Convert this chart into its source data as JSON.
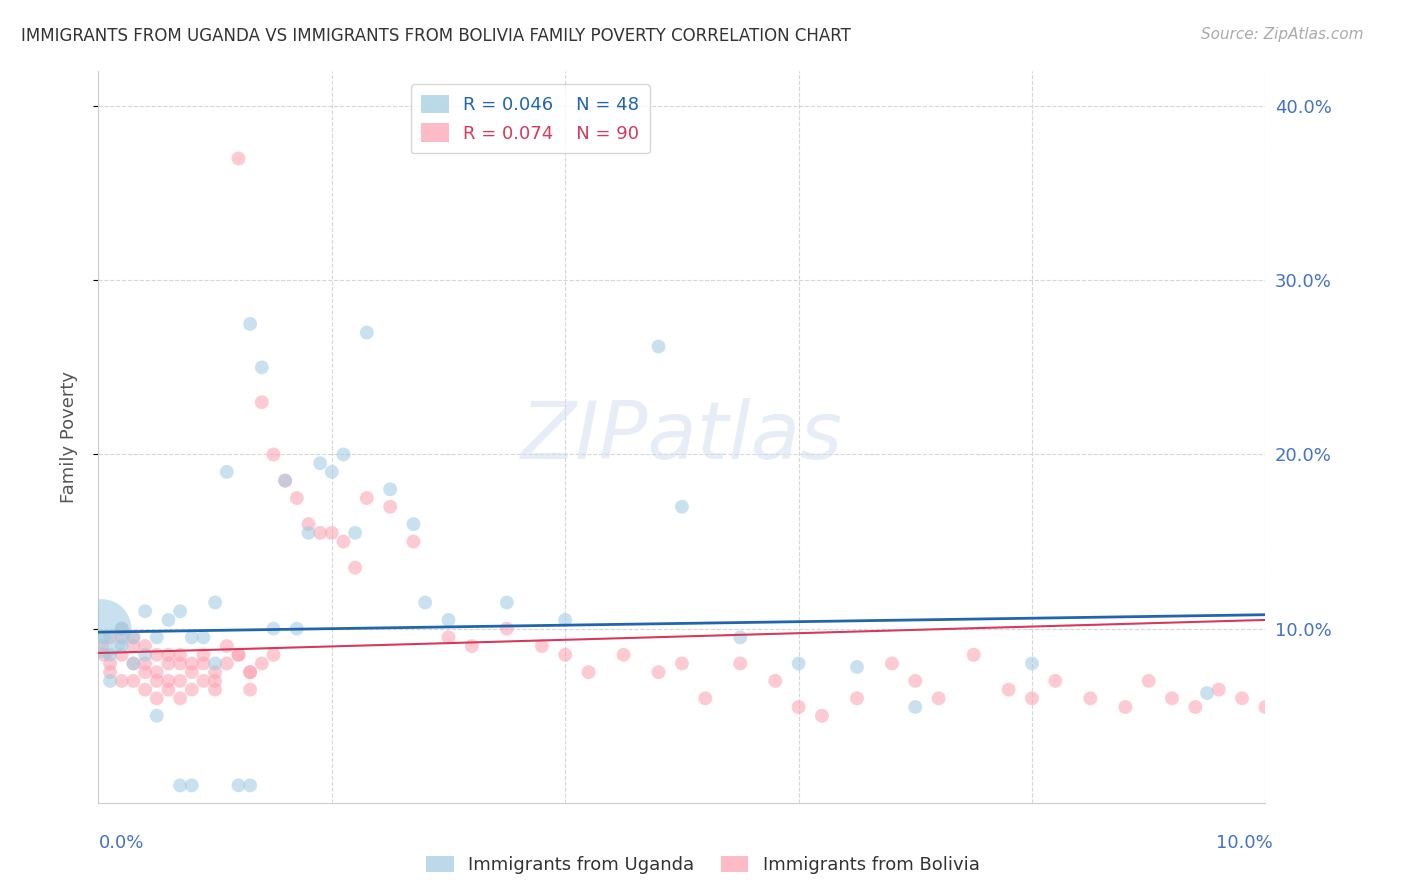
{
  "title": "IMMIGRANTS FROM UGANDA VS IMMIGRANTS FROM BOLIVIA FAMILY POVERTY CORRELATION CHART",
  "source": "Source: ZipAtlas.com",
  "ylabel": "Family Poverty",
  "xlim": [
    0.0,
    0.1
  ],
  "ylim": [
    0.0,
    0.42
  ],
  "legend_r1": "R = 0.046",
  "legend_n1": "N = 48",
  "legend_r2": "R = 0.074",
  "legend_n2": "N = 90",
  "color_uganda": "#9ecae1",
  "color_bolivia": "#fc9fb0",
  "trendline_color_uganda": "#2166ac",
  "trendline_color_bolivia": "#d6395c",
  "watermark": "ZIPatlas",
  "uganda_x": [
    0.0003,
    0.0005,
    0.001,
    0.001,
    0.002,
    0.002,
    0.003,
    0.003,
    0.004,
    0.004,
    0.005,
    0.005,
    0.006,
    0.007,
    0.007,
    0.008,
    0.008,
    0.009,
    0.01,
    0.01,
    0.011,
    0.012,
    0.013,
    0.013,
    0.014,
    0.015,
    0.016,
    0.017,
    0.018,
    0.019,
    0.02,
    0.021,
    0.022,
    0.023,
    0.025,
    0.027,
    0.028,
    0.03,
    0.035,
    0.04,
    0.048,
    0.05,
    0.055,
    0.06,
    0.065,
    0.07,
    0.08,
    0.095
  ],
  "uganda_y": [
    0.1,
    0.095,
    0.085,
    0.07,
    0.1,
    0.09,
    0.095,
    0.08,
    0.11,
    0.085,
    0.05,
    0.095,
    0.105,
    0.01,
    0.11,
    0.095,
    0.01,
    0.095,
    0.115,
    0.08,
    0.19,
    0.01,
    0.275,
    0.01,
    0.25,
    0.1,
    0.185,
    0.1,
    0.155,
    0.195,
    0.19,
    0.2,
    0.155,
    0.27,
    0.18,
    0.16,
    0.115,
    0.105,
    0.115,
    0.105,
    0.262,
    0.17,
    0.095,
    0.08,
    0.078,
    0.055,
    0.08,
    0.063
  ],
  "uganda_size": [
    1800,
    100,
    100,
    100,
    100,
    100,
    100,
    100,
    100,
    100,
    100,
    100,
    100,
    100,
    100,
    100,
    100,
    100,
    100,
    100,
    100,
    100,
    100,
    100,
    100,
    100,
    100,
    100,
    100,
    100,
    100,
    100,
    100,
    100,
    100,
    100,
    100,
    100,
    100,
    100,
    100,
    100,
    100,
    100,
    100,
    100,
    100,
    100
  ],
  "bolivia_x": [
    0.0003,
    0.0005,
    0.001,
    0.001,
    0.001,
    0.002,
    0.002,
    0.002,
    0.003,
    0.003,
    0.003,
    0.004,
    0.004,
    0.004,
    0.005,
    0.005,
    0.005,
    0.006,
    0.006,
    0.006,
    0.007,
    0.007,
    0.007,
    0.008,
    0.008,
    0.009,
    0.009,
    0.01,
    0.01,
    0.011,
    0.011,
    0.012,
    0.012,
    0.013,
    0.013,
    0.014,
    0.014,
    0.015,
    0.015,
    0.016,
    0.017,
    0.018,
    0.019,
    0.02,
    0.021,
    0.022,
    0.023,
    0.025,
    0.027,
    0.03,
    0.032,
    0.035,
    0.038,
    0.04,
    0.042,
    0.045,
    0.048,
    0.05,
    0.052,
    0.055,
    0.058,
    0.06,
    0.062,
    0.065,
    0.068,
    0.07,
    0.072,
    0.075,
    0.078,
    0.08,
    0.082,
    0.085,
    0.088,
    0.09,
    0.092,
    0.094,
    0.096,
    0.098,
    0.1,
    0.012,
    0.013,
    0.002,
    0.003,
    0.004,
    0.005,
    0.006,
    0.007,
    0.008,
    0.009,
    0.01
  ],
  "bolivia_y": [
    0.09,
    0.085,
    0.095,
    0.08,
    0.075,
    0.1,
    0.085,
    0.07,
    0.095,
    0.08,
    0.07,
    0.09,
    0.075,
    0.065,
    0.085,
    0.07,
    0.06,
    0.08,
    0.07,
    0.065,
    0.085,
    0.07,
    0.06,
    0.08,
    0.065,
    0.085,
    0.07,
    0.075,
    0.065,
    0.09,
    0.08,
    0.37,
    0.085,
    0.075,
    0.065,
    0.23,
    0.08,
    0.2,
    0.085,
    0.185,
    0.175,
    0.16,
    0.155,
    0.155,
    0.15,
    0.135,
    0.175,
    0.17,
    0.15,
    0.095,
    0.09,
    0.1,
    0.09,
    0.085,
    0.075,
    0.085,
    0.075,
    0.08,
    0.06,
    0.08,
    0.07,
    0.055,
    0.05,
    0.06,
    0.08,
    0.07,
    0.06,
    0.085,
    0.065,
    0.06,
    0.07,
    0.06,
    0.055,
    0.07,
    0.06,
    0.055,
    0.065,
    0.06,
    0.055,
    0.085,
    0.075,
    0.095,
    0.09,
    0.08,
    0.075,
    0.085,
    0.08,
    0.075,
    0.08,
    0.07
  ],
  "bolivia_size": [
    100,
    100,
    100,
    100,
    100,
    100,
    100,
    100,
    100,
    100,
    100,
    100,
    100,
    100,
    100,
    100,
    100,
    100,
    100,
    100,
    100,
    100,
    100,
    100,
    100,
    100,
    100,
    100,
    100,
    100,
    100,
    100,
    100,
    100,
    100,
    100,
    100,
    100,
    100,
    100,
    100,
    100,
    100,
    100,
    100,
    100,
    100,
    100,
    100,
    100,
    100,
    100,
    100,
    100,
    100,
    100,
    100,
    100,
    100,
    100,
    100,
    100,
    100,
    100,
    100,
    100,
    100,
    100,
    100,
    100,
    100,
    100,
    100,
    100,
    100,
    100,
    100,
    100,
    100,
    100,
    100,
    100,
    100,
    100,
    100,
    100,
    100,
    100,
    100,
    100
  ],
  "grid_color": "#cccccc",
  "background_color": "#ffffff",
  "axis_color": "#4472c4",
  "trend_u_x0": 0.0,
  "trend_u_y0": 0.098,
  "trend_u_x1": 0.1,
  "trend_u_y1": 0.108,
  "trend_b_x0": 0.0,
  "trend_b_y0": 0.086,
  "trend_b_x1": 0.1,
  "trend_b_y1": 0.105
}
